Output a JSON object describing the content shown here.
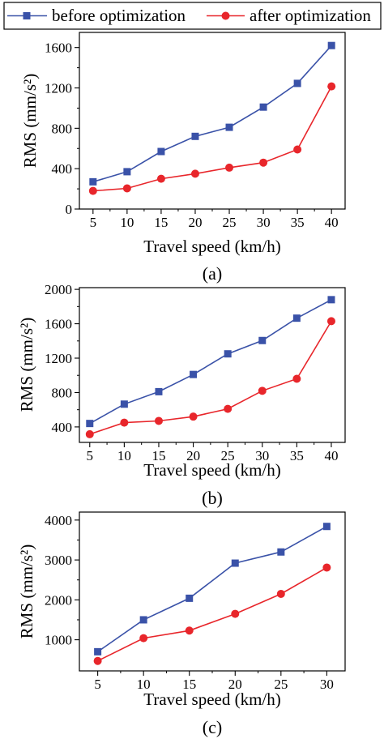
{
  "legend": [
    {
      "label": "before optimization",
      "color": "#3a52a8",
      "marker": "square"
    },
    {
      "label": "after optimization",
      "color": "#e8262b",
      "marker": "circle"
    }
  ],
  "chart_data": [
    {
      "type": "line",
      "panel_label": "(a)",
      "xlabel": "Travel speed (km/h)",
      "ylabel": "RMS (mm/s²)",
      "x": [
        5,
        10,
        15,
        20,
        25,
        30,
        35,
        40
      ],
      "xticks": [
        5,
        10,
        15,
        20,
        25,
        30,
        35,
        40
      ],
      "xlim": [
        3,
        42
      ],
      "yticks": [
        0,
        400,
        800,
        1200,
        1600
      ],
      "ylim": [
        0,
        1750
      ],
      "series": [
        {
          "name": "before optimization",
          "values": [
            270,
            370,
            570,
            720,
            810,
            1010,
            1245,
            1620
          ]
        },
        {
          "name": "after optimization",
          "values": [
            180,
            205,
            300,
            350,
            410,
            460,
            590,
            1215
          ]
        }
      ]
    },
    {
      "type": "line",
      "panel_label": "(b)",
      "xlabel": "Travel speed (km/h)",
      "ylabel": "RMS (mm/s²)",
      "x": [
        5,
        10,
        15,
        20,
        25,
        30,
        35,
        40
      ],
      "xticks": [
        5,
        10,
        15,
        20,
        25,
        30,
        35,
        40
      ],
      "xlim": [
        3.5,
        42
      ],
      "yticks": [
        400,
        800,
        1200,
        1600,
        2000
      ],
      "ylim": [
        220,
        2020
      ],
      "series": [
        {
          "name": "before optimization",
          "values": [
            440,
            665,
            810,
            1010,
            1250,
            1405,
            1665,
            1880
          ]
        },
        {
          "name": "after optimization",
          "values": [
            315,
            450,
            470,
            520,
            610,
            820,
            960,
            1630
          ]
        }
      ]
    },
    {
      "type": "line",
      "panel_label": "(c)",
      "xlabel": "Travel speed (km/h)",
      "ylabel": "RMS (mm/s²)",
      "x": [
        5,
        10,
        15,
        20,
        25,
        30
      ],
      "xticks": [
        5,
        10,
        15,
        20,
        25,
        30
      ],
      "xlim": [
        3,
        32
      ],
      "yticks": [
        1000,
        2000,
        3000,
        4000
      ],
      "ylim": [
        220,
        4200
      ],
      "series": [
        {
          "name": "before optimization",
          "values": [
            700,
            1500,
            2040,
            2920,
            3200,
            3840
          ]
        },
        {
          "name": "after optimization",
          "values": [
            470,
            1040,
            1230,
            1650,
            2150,
            2810
          ]
        }
      ]
    }
  ]
}
